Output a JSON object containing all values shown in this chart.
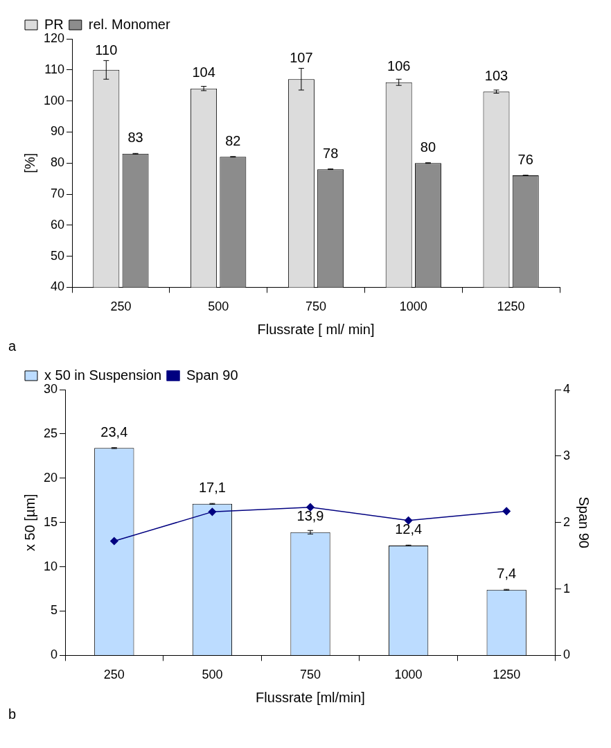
{
  "chart_data": [
    {
      "type": "bar",
      "xlabel": "Flussrate [ ml/ min]",
      "ylabel": "[%]",
      "categories": [
        "250",
        "500",
        "750",
        "1000",
        "1250"
      ],
      "series": [
        {
          "name": "PR",
          "color": "#dcdcdc",
          "values": [
            110,
            104,
            107,
            106,
            103
          ],
          "errors": [
            3,
            0.7,
            3.5,
            1,
            0.5
          ]
        },
        {
          "name": "rel. Monomer",
          "color": "#8c8c8c",
          "values": [
            83,
            82,
            78,
            80,
            76
          ],
          "errors": [
            0.1,
            0.1,
            0.1,
            0.1,
            0.1
          ]
        }
      ],
      "ylim": [
        40,
        120
      ],
      "yticks": [
        40,
        50,
        60,
        70,
        80,
        90,
        100,
        110,
        120
      ],
      "grid": false,
      "legend": "top left",
      "data_labels": true,
      "annotations": [
        "a"
      ]
    },
    {
      "type": "bar",
      "xlabel": "Flussrate [ml/min]",
      "ylabel": "x 50 [µm]",
      "y2label": "Span 90",
      "categories": [
        "250",
        "500",
        "750",
        "1000",
        "1250"
      ],
      "series": [
        {
          "name": "x 50 in Suspension",
          "color": "#bcdcff",
          "values": [
            23.4,
            17.1,
            13.9,
            12.4,
            7.4
          ],
          "errors": [
            0.05,
            0.05,
            0.2,
            0.05,
            0.05
          ],
          "value_labels": [
            "23,4",
            "17,1",
            "13,9",
            "12,4",
            "7,4"
          ]
        },
        {
          "name": "Span 90",
          "type": "line",
          "axis": "y2",
          "color": "#000080",
          "marker": "diamond",
          "values": [
            1.72,
            2.16,
            2.23,
            2.03,
            2.17
          ]
        }
      ],
      "ylim": [
        0,
        30
      ],
      "yticks": [
        0,
        5,
        10,
        15,
        20,
        25,
        30
      ],
      "y2lim": [
        0,
        4
      ],
      "y2ticks": [
        0,
        1,
        2,
        3,
        4
      ],
      "grid": false,
      "legend": "top left",
      "annotations": [
        "b"
      ]
    }
  ]
}
